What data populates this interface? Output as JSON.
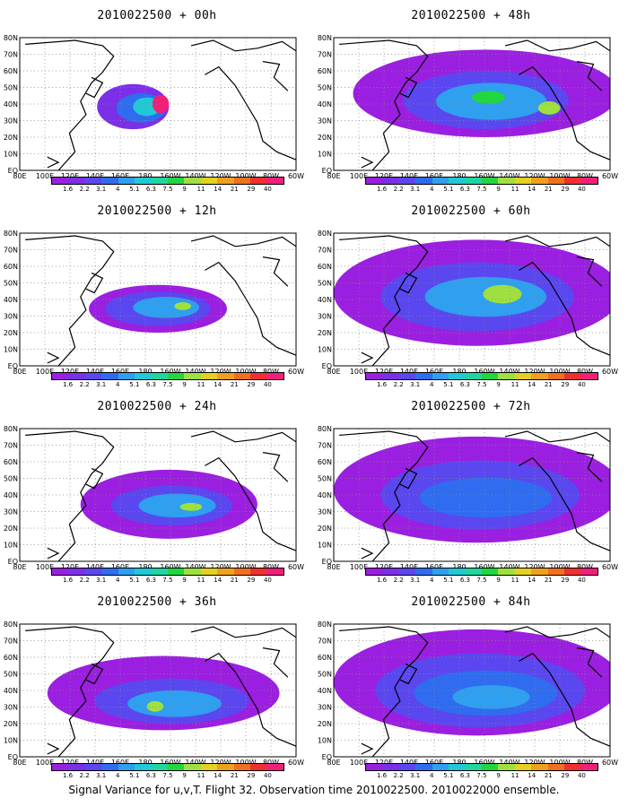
{
  "panels": [
    {
      "title": "2010022500 + 00h"
    },
    {
      "title": "2010022500 + 48h"
    },
    {
      "title": "2010022500 + 12h"
    },
    {
      "title": "2010022500 + 60h"
    },
    {
      "title": "2010022500 + 24h"
    },
    {
      "title": "2010022500 + 72h"
    },
    {
      "title": "2010022500 + 36h"
    },
    {
      "title": "2010022500 + 84h"
    }
  ],
  "lon_labels": [
    "80E",
    "100E",
    "120E",
    "140E",
    "160E",
    "180",
    "160W",
    "140W",
    "120W",
    "100W",
    "80W",
    "60W"
  ],
  "lat_labels": [
    "80N",
    "70N",
    "60N",
    "50N",
    "40N",
    "30N",
    "20N",
    "10N",
    "EQ"
  ],
  "colorbar": {
    "labels": [
      "1.6",
      "2.2",
      "3.1",
      "4",
      "5.1",
      "6.3",
      "7.5",
      "9",
      "11",
      "14",
      "21",
      "29",
      "40"
    ],
    "colors": [
      "#9b1fe0",
      "#7c2fe8",
      "#5a47f0",
      "#2f6cf0",
      "#2f9ff0",
      "#20c9d6",
      "#1fd6a0",
      "#22d640",
      "#9fe040",
      "#e6d020",
      "#f0a020",
      "#f07020",
      "#f03030",
      "#f0207a"
    ]
  },
  "caption": "Signal Variance for u,v,T. Flight 32. Observation time 2010022500. 2010022000 ensemble."
}
